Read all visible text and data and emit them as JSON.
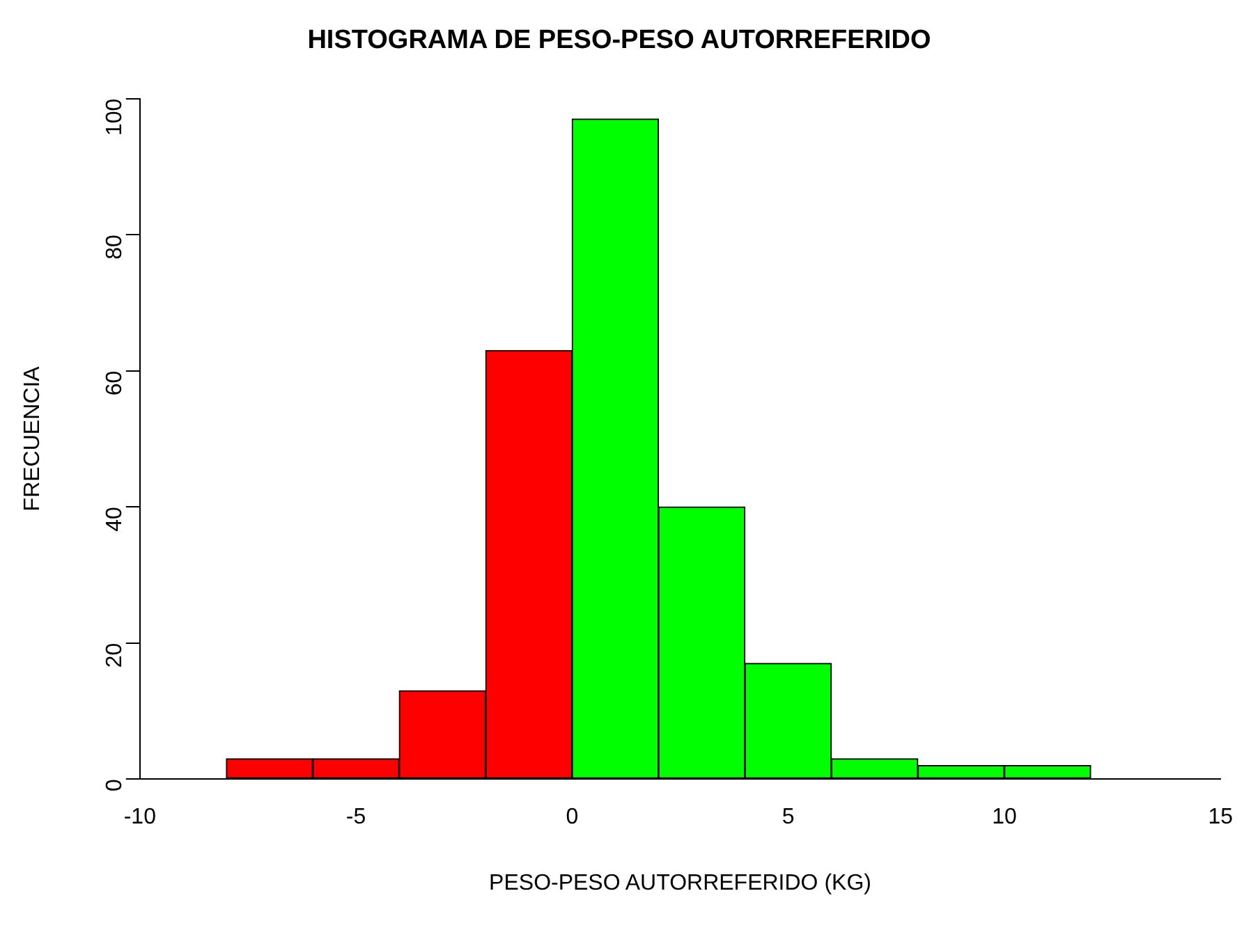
{
  "chart_data": {
    "type": "histogram",
    "title": "HISTOGRAMA DE PESO-PESO AUTORREFERIDO",
    "xlabel": "PESO-PESO AUTORREFERIDO (KG)",
    "ylabel": "FRECUENCIA",
    "bins": [
      -8,
      -6,
      -4,
      -2,
      0,
      2,
      4,
      6,
      8,
      10,
      12
    ],
    "values": [
      3,
      3,
      13,
      63,
      97,
      40,
      17,
      3,
      2,
      2
    ],
    "colors": [
      "#ff0000",
      "#ff0000",
      "#ff0000",
      "#ff0000",
      "#00ff00",
      "#00ff00",
      "#00ff00",
      "#00ff00",
      "#00ff00",
      "#00ff00"
    ],
    "xlim": [
      -10,
      15
    ],
    "xticks": [
      -10,
      -5,
      0,
      5,
      10,
      15
    ],
    "ylim": [
      0,
      100
    ],
    "yticks": [
      0,
      20,
      40,
      60,
      80,
      100
    ],
    "grid": false,
    "legend": false
  }
}
